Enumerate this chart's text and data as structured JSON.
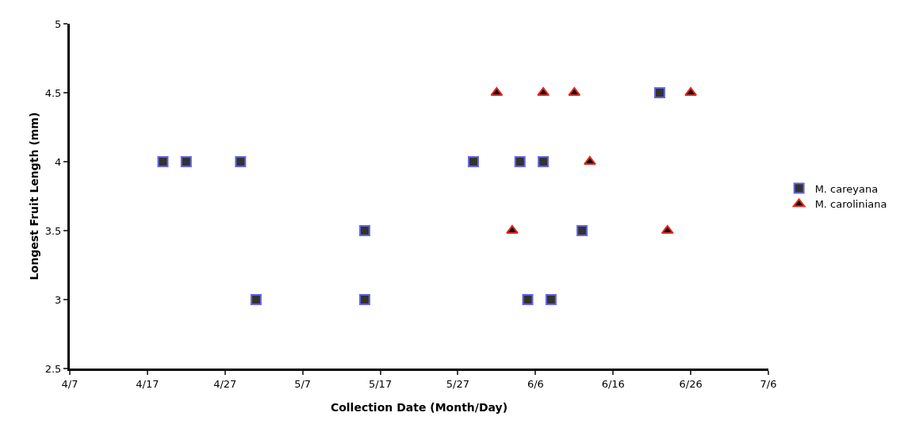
{
  "chart_data": {
    "type": "scatter",
    "xlabel": "Collection Date (Month/Day)",
    "ylabel": "Longest Fruit Length (mm)",
    "xlim": [
      "--04-07",
      "--07-06"
    ],
    "xticks": [
      {
        "value": "--04-07",
        "label": "4/7"
      },
      {
        "value": "--04-17",
        "label": "4/17"
      },
      {
        "value": "--04-27",
        "label": "4/27"
      },
      {
        "value": "--05-07",
        "label": "5/7"
      },
      {
        "value": "--05-17",
        "label": "5/17"
      },
      {
        "value": "--05-27",
        "label": "5/27"
      },
      {
        "value": "--06-06",
        "label": "6/6"
      },
      {
        "value": "--06-16",
        "label": "6/16"
      },
      {
        "value": "--06-26",
        "label": "6/26"
      },
      {
        "value": "--07-06",
        "label": "7/6"
      }
    ],
    "ylim": [
      2.5,
      5
    ],
    "yticks": [
      2.5,
      3,
      3.5,
      4,
      4.5,
      5
    ],
    "grid": false,
    "legend": "right",
    "series": [
      {
        "name": "M. careyana",
        "color": "#333333",
        "marker": "square",
        "x": [
          "--04-19",
          "--04-22",
          "--04-29",
          "--05-01",
          "--05-15",
          "--05-15",
          "--05-29",
          "--06-04",
          "--06-07",
          "--06-05",
          "--06-08",
          "--06-12",
          "--06-22"
        ],
        "values": [
          4,
          4,
          4,
          3,
          3.5,
          3,
          4,
          4,
          4,
          3,
          3,
          3.5,
          4.5
        ]
      },
      {
        "name": "M. caroliniana",
        "color": "#111111",
        "marker": "triangle",
        "x": [
          "--06-01",
          "--06-03",
          "--06-07",
          "--06-11",
          "--06-13",
          "--06-23",
          "--06-26"
        ],
        "values": [
          4.5,
          3.5,
          4.5,
          4.5,
          4,
          3.5,
          4.5
        ]
      }
    ]
  }
}
